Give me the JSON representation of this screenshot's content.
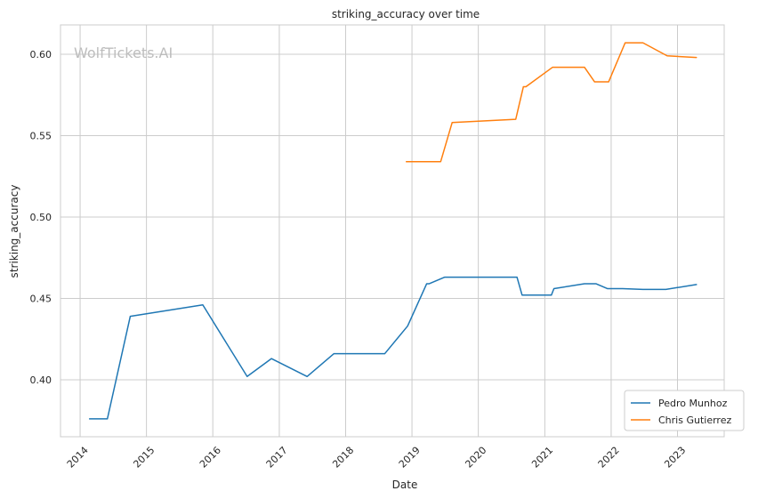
{
  "chart_data": {
    "type": "line",
    "title": "striking_accuracy over time",
    "xlabel": "Date",
    "ylabel": "striking_accuracy",
    "watermark": "WolfTickets.AI",
    "x_tick_labels": [
      "2014",
      "2015",
      "2016",
      "2017",
      "2018",
      "2019",
      "2020",
      "2021",
      "2022",
      "2023"
    ],
    "y_tick_labels": [
      "0.40",
      "0.45",
      "0.50",
      "0.55",
      "0.60"
    ],
    "y_ticks": [
      0.4,
      0.45,
      0.5,
      0.55,
      0.6
    ],
    "xlim": [
      "2013-09-15",
      "2023-09-15"
    ],
    "ylim": [
      0.365,
      0.618
    ],
    "grid": true,
    "legend_position": "bottom-right",
    "series": [
      {
        "name": "Pedro Munhoz",
        "color": "#1f77b4",
        "points": [
          [
            "2014-02-22",
            0.376
          ],
          [
            "2014-05-31",
            0.376
          ],
          [
            "2014-10-04",
            0.439
          ],
          [
            "2015-11-07",
            0.446
          ],
          [
            "2016-07-08",
            0.402
          ],
          [
            "2016-11-19",
            0.413
          ],
          [
            "2017-06-03",
            0.402
          ],
          [
            "2017-10-28",
            0.416
          ],
          [
            "2018-02-03",
            0.416
          ],
          [
            "2018-08-04",
            0.416
          ],
          [
            "2018-12-08",
            0.433
          ],
          [
            "2019-03-23",
            0.459
          ],
          [
            "2019-04-06",
            0.459
          ],
          [
            "2019-06-29",
            0.463
          ],
          [
            "2020-08-01",
            0.463
          ],
          [
            "2020-08-29",
            0.452
          ],
          [
            "2021-02-06",
            0.452
          ],
          [
            "2021-02-20",
            0.456
          ],
          [
            "2021-08-07",
            0.459
          ],
          [
            "2021-10-09",
            0.459
          ],
          [
            "2021-12-11",
            0.456
          ],
          [
            "2022-03-05",
            0.456
          ],
          [
            "2022-06-25",
            0.4555
          ],
          [
            "2022-10-29",
            0.4555
          ],
          [
            "2023-04-15",
            0.4585
          ]
        ]
      },
      {
        "name": "Chris Gutierrez",
        "color": "#ff7f0e",
        "points": [
          [
            "2018-12-01",
            0.534
          ],
          [
            "2019-06-08",
            0.534
          ],
          [
            "2019-08-10",
            0.558
          ],
          [
            "2020-07-25",
            0.56
          ],
          [
            "2020-09-05",
            0.58
          ],
          [
            "2020-09-19",
            0.58
          ],
          [
            "2021-02-13",
            0.592
          ],
          [
            "2021-08-07",
            0.592
          ],
          [
            "2021-10-02",
            0.583
          ],
          [
            "2021-12-18",
            0.583
          ],
          [
            "2022-03-19",
            0.607
          ],
          [
            "2022-06-25",
            0.607
          ],
          [
            "2022-11-05",
            0.599
          ],
          [
            "2023-04-15",
            0.598
          ]
        ]
      }
    ]
  }
}
